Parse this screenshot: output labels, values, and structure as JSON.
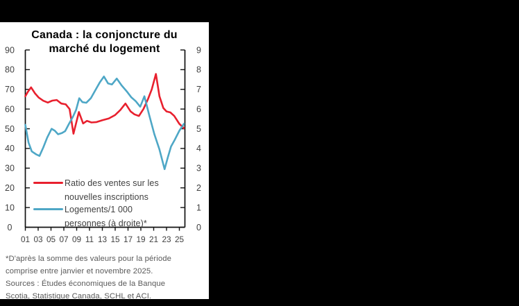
{
  "title": {
    "line1": "Canada : la conjoncture du",
    "line2": "marché du logement"
  },
  "legend": {
    "items": [
      {
        "label_line1": "Ratio des ventes sur les",
        "label_line2": "nouvelles inscriptions",
        "color": "#e8202e"
      },
      {
        "label_line1": "Logements/1 000",
        "label_line2": "personnes (à droite)*",
        "color": "#4ea7c6"
      }
    ]
  },
  "footnote": {
    "lines": [
      "*D'après la somme des valeurs pour la période",
      "comprise entre janvier et novembre 2025.",
      "Sources : Études économiques de la Banque",
      "Scotia, Statistique Canada, SCHL et ACI."
    ]
  },
  "colors": {
    "background": "#000000",
    "panel": "#ffffff",
    "axis": "#111111",
    "tick_text": "#3f3f3f",
    "series_red": "#e8202e",
    "series_blue": "#4ea7c6",
    "footnote_text": "#595959"
  },
  "chart_data": {
    "type": "line",
    "title": "Canada : la conjoncture du marché du logement",
    "grid": false,
    "legend_position": "inside-bottom-left",
    "x_axis": {
      "tick_labels": [
        "01",
        "03",
        "05",
        "07",
        "09",
        "11",
        "13",
        "15",
        "17",
        "19",
        "21",
        "23",
        "25"
      ],
      "start_year": 2001,
      "tick_step_years": 2,
      "range": [
        2001,
        2025.95
      ]
    },
    "y_left": {
      "min": 0,
      "max": 90,
      "step": 10,
      "tick_labels": [
        "0",
        "10",
        "20",
        "30",
        "40",
        "50",
        "60",
        "70",
        "80",
        "90"
      ]
    },
    "y_right": {
      "min": 0,
      "max": 9,
      "step": 1,
      "tick_labels": [
        "0",
        "1",
        "2",
        "3",
        "4",
        "5",
        "6",
        "7",
        "8",
        "9"
      ]
    },
    "series": [
      {
        "name": "Ratio des ventes sur les nouvelles inscriptions",
        "axis": "left",
        "color": "#e8202e",
        "points": [
          [
            2001.0,
            66.5
          ],
          [
            2001.4,
            68.8
          ],
          [
            2001.9,
            71.0
          ],
          [
            2002.5,
            68.0
          ],
          [
            2003.1,
            65.8
          ],
          [
            2003.8,
            64.2
          ],
          [
            2004.5,
            63.3
          ],
          [
            2005.2,
            64.3
          ],
          [
            2005.9,
            64.6
          ],
          [
            2006.6,
            62.8
          ],
          [
            2007.3,
            62.4
          ],
          [
            2007.9,
            60.0
          ],
          [
            2008.5,
            47.5
          ],
          [
            2009.35,
            58.5
          ],
          [
            2010.0,
            52.7
          ],
          [
            2010.6,
            54.0
          ],
          [
            2011.3,
            53.2
          ],
          [
            2012.1,
            53.4
          ],
          [
            2013.0,
            54.3
          ],
          [
            2014.0,
            55.2
          ],
          [
            2015.0,
            57.0
          ],
          [
            2015.8,
            59.5
          ],
          [
            2016.6,
            62.8
          ],
          [
            2017.4,
            58.8
          ],
          [
            2018.0,
            57.3
          ],
          [
            2018.7,
            56.5
          ],
          [
            2019.4,
            60.0
          ],
          [
            2020.1,
            65.0
          ],
          [
            2020.7,
            70.0
          ],
          [
            2021.35,
            77.8
          ],
          [
            2021.9,
            66.5
          ],
          [
            2022.5,
            60.5
          ],
          [
            2023.0,
            58.8
          ],
          [
            2023.6,
            58.3
          ],
          [
            2024.2,
            56.5
          ],
          [
            2025.0,
            52.5
          ],
          [
            2025.7,
            50.3
          ]
        ]
      },
      {
        "name": "Logements/1 000 personnes (à droite)*",
        "axis": "right",
        "color": "#4ea7c6",
        "points": [
          [
            2001.0,
            5.2
          ],
          [
            2001.5,
            4.3
          ],
          [
            2002.0,
            3.85
          ],
          [
            2002.7,
            3.7
          ],
          [
            2003.2,
            3.62
          ],
          [
            2003.8,
            4.05
          ],
          [
            2004.4,
            4.55
          ],
          [
            2005.1,
            5.0
          ],
          [
            2005.6,
            4.9
          ],
          [
            2006.1,
            4.72
          ],
          [
            2006.7,
            4.78
          ],
          [
            2007.2,
            4.88
          ],
          [
            2007.8,
            5.25
          ],
          [
            2008.4,
            5.6
          ],
          [
            2008.9,
            5.95
          ],
          [
            2009.4,
            6.55
          ],
          [
            2009.9,
            6.35
          ],
          [
            2010.5,
            6.32
          ],
          [
            2011.2,
            6.55
          ],
          [
            2011.9,
            6.95
          ],
          [
            2012.6,
            7.35
          ],
          [
            2013.25,
            7.65
          ],
          [
            2013.9,
            7.3
          ],
          [
            2014.5,
            7.25
          ],
          [
            2015.25,
            7.55
          ],
          [
            2016.0,
            7.2
          ],
          [
            2016.8,
            6.9
          ],
          [
            2017.5,
            6.6
          ],
          [
            2018.2,
            6.4
          ],
          [
            2018.9,
            6.12
          ],
          [
            2019.55,
            6.65
          ],
          [
            2020.3,
            5.7
          ],
          [
            2021.1,
            4.73
          ],
          [
            2021.9,
            3.95
          ],
          [
            2022.7,
            2.95
          ],
          [
            2023.2,
            3.55
          ],
          [
            2023.7,
            4.1
          ],
          [
            2024.3,
            4.45
          ],
          [
            2025.0,
            4.9
          ],
          [
            2025.7,
            5.25
          ]
        ]
      }
    ]
  }
}
